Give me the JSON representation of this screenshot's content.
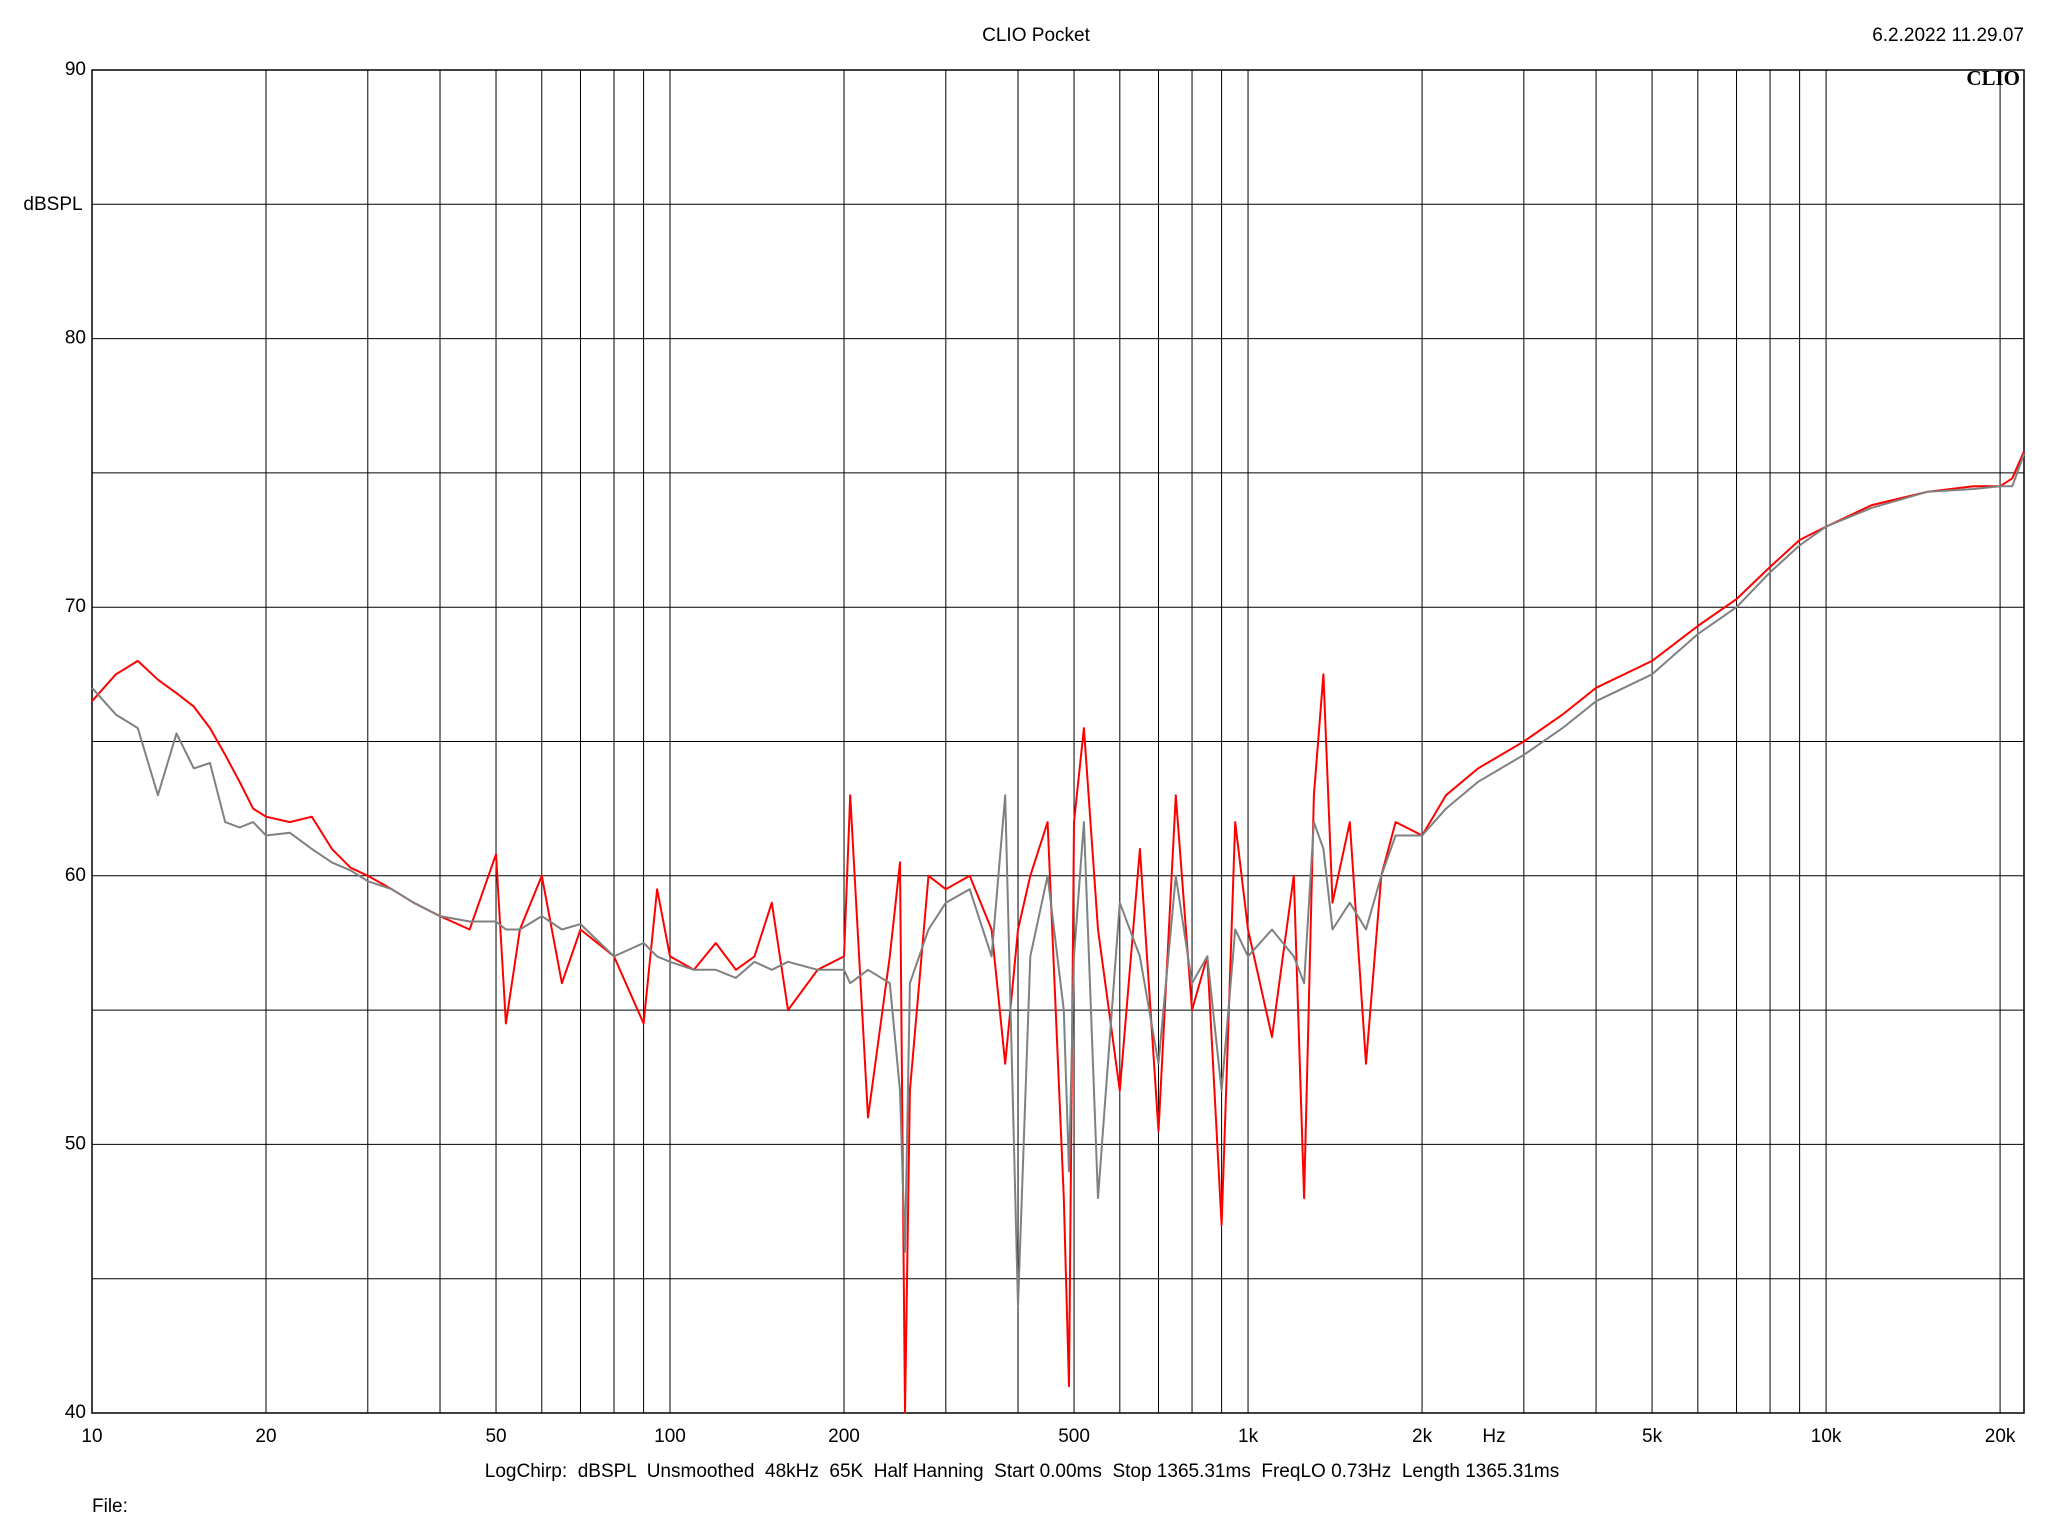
{
  "chart_data": {
    "type": "line",
    "title": "CLIO Pocket",
    "timestamp": "6.2.2022 11.29.07",
    "logo": "CLIO",
    "y_label": "dBSPL",
    "x_label": "Hz",
    "info": "LogChirp:  dBSPL  Unsmoothed  48kHz  65K  Half Hanning  Start 0.00ms  Stop 1365.31ms  FreqLO 0.73Hz  Length 1365.31ms",
    "file_label": "File:",
    "x_log": true,
    "grid": true,
    "xlim": [
      10,
      22000
    ],
    "ylim": [
      40,
      90
    ],
    "xticks": [
      10,
      20,
      50,
      100,
      200,
      500,
      {
        "value": 1000,
        "label": "1k"
      },
      {
        "value": 2000,
        "label": "2k"
      },
      {
        "value": 5000,
        "label": "5k"
      },
      {
        "value": 10000,
        "label": "10k"
      },
      {
        "value": 20000,
        "label": "20k"
      }
    ],
    "xgrid_minor": [
      30,
      40,
      60,
      70,
      80,
      90,
      300,
      400,
      600,
      700,
      800,
      900,
      3000,
      4000,
      6000,
      7000,
      8000,
      9000
    ],
    "yticks": [
      40,
      50,
      60,
      70,
      80,
      90
    ],
    "ygrid_minor": [
      45,
      55,
      65,
      75,
      85
    ],
    "x": [
      10,
      11,
      12,
      13,
      14,
      15,
      16,
      17,
      18,
      19,
      20,
      22,
      24,
      26,
      28,
      30,
      33,
      36,
      40,
      45,
      50,
      52,
      55,
      60,
      65,
      70,
      80,
      90,
      95,
      100,
      110,
      120,
      130,
      140,
      150,
      160,
      180,
      200,
      205,
      220,
      240,
      250,
      255,
      260,
      280,
      300,
      330,
      360,
      380,
      400,
      420,
      450,
      480,
      490,
      500,
      520,
      550,
      600,
      650,
      700,
      750,
      800,
      850,
      900,
      950,
      1000,
      1100,
      1200,
      1250,
      1300,
      1350,
      1400,
      1500,
      1600,
      1700,
      1800,
      2000,
      2200,
      2500,
      3000,
      3500,
      4000,
      5000,
      6000,
      7000,
      8000,
      9000,
      10000,
      12000,
      15000,
      18000,
      20000,
      21000,
      22000
    ],
    "series": [
      {
        "color": "#ff0000",
        "values": [
          66.5,
          67.5,
          68,
          67.3,
          66.8,
          66.3,
          65.5,
          64.5,
          63.5,
          62.5,
          62.2,
          62,
          62.2,
          61,
          60.3,
          60,
          59.5,
          59,
          58.5,
          58,
          60.8,
          54.5,
          58,
          60,
          56,
          58,
          57,
          54.5,
          59.5,
          57,
          56.5,
          57.5,
          56.5,
          57,
          59,
          55,
          56.5,
          57,
          63,
          51,
          57,
          60.5,
          40,
          52,
          60,
          59.5,
          60,
          58,
          53,
          58,
          60,
          62,
          48,
          41,
          62,
          65.5,
          58,
          52,
          61,
          50.5,
          63,
          55,
          57,
          47,
          62,
          58,
          54,
          60,
          48,
          63,
          67.5,
          59,
          62,
          53,
          60,
          62,
          61.5,
          63,
          64,
          65,
          66,
          67,
          68,
          69.3,
          70.3,
          71.5,
          72.5,
          73,
          73.8,
          74.3,
          74.5,
          74.5,
          74.8,
          75.8
        ]
      },
      {
        "color": "#808080",
        "values": [
          67,
          66,
          65.5,
          63,
          65.3,
          64,
          64.2,
          62,
          61.8,
          62,
          61.5,
          61.6,
          61,
          60.5,
          60.2,
          59.8,
          59.5,
          59,
          58.5,
          58.3,
          58.3,
          58,
          58,
          58.5,
          58,
          58.2,
          57,
          57.5,
          57,
          56.8,
          56.5,
          56.5,
          56.2,
          56.8,
          56.5,
          56.8,
          56.5,
          56.5,
          56,
          56.5,
          56,
          52,
          46,
          56,
          58,
          59,
          59.5,
          57,
          63,
          44,
          57,
          60,
          55,
          49,
          57,
          62,
          48,
          59,
          57,
          53,
          60,
          56,
          57,
          52,
          58,
          57,
          58,
          57,
          56,
          62,
          61,
          58,
          59,
          58,
          60,
          61.5,
          61.5,
          62.5,
          63.5,
          64.5,
          65.5,
          66.5,
          67.5,
          69,
          70,
          71.3,
          72.3,
          73,
          73.7,
          74.3,
          74.4,
          74.5,
          74.5,
          75.7
        ]
      }
    ]
  }
}
